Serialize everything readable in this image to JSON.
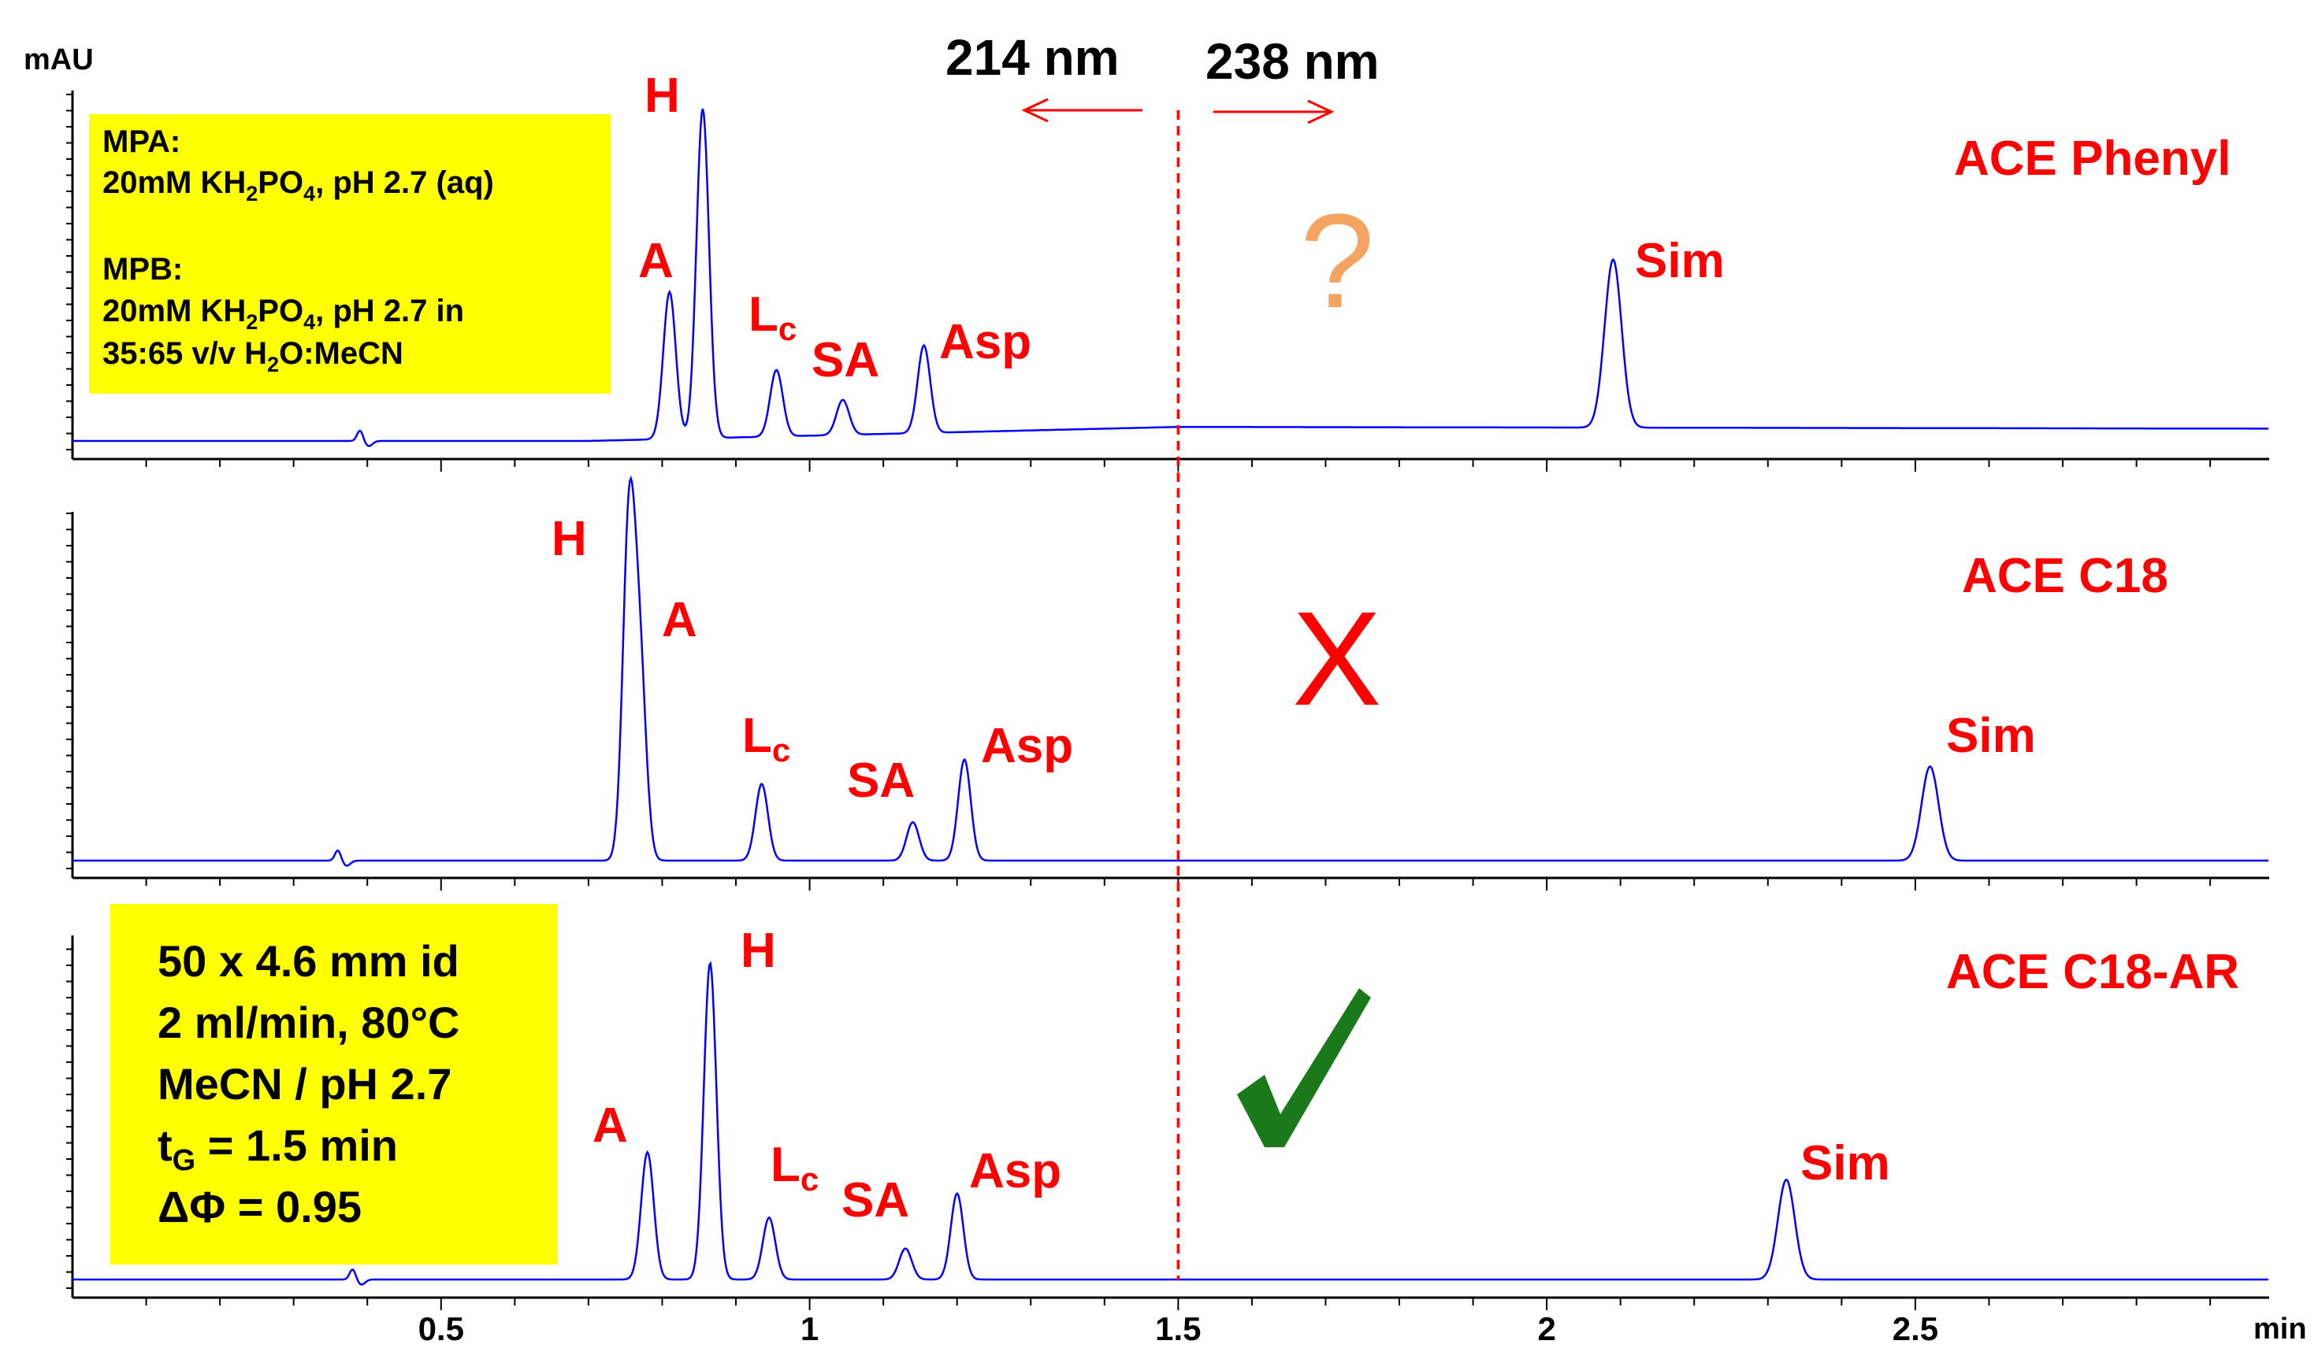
{
  "chart_data": {
    "type": "line",
    "y_unit": "mAU",
    "x_unit": "min",
    "x_range": [
      0.0,
      2.98
    ],
    "x_ticks": [
      "0.5",
      "1",
      "1.5",
      "2",
      "2.5"
    ],
    "x_tick_values": [
      0.5,
      1.0,
      1.5,
      2.0,
      2.5
    ],
    "wavelength_split": {
      "x": 1.5,
      "left_label": "214 nm",
      "right_label": "238 nm",
      "color": "#ff0000"
    },
    "trace_color": "#0000ff",
    "label_color": "#ff0000",
    "panels": [
      {
        "column": "ACE Phenyl",
        "verdict": "?",
        "verdict_color": "#f4a460",
        "baseline_drift": true,
        "peaks": [
          {
            "name": "A",
            "sub": "",
            "rt": 0.81,
            "height": 0.42
          },
          {
            "name": "H",
            "sub": "",
            "rt": 0.855,
            "height": 0.94
          },
          {
            "name": "L",
            "sub": "c",
            "rt": 0.955,
            "height": 0.19
          },
          {
            "name": "SA",
            "sub": "",
            "rt": 1.045,
            "height": 0.1
          },
          {
            "name": "Asp",
            "sub": "",
            "rt": 1.155,
            "height": 0.25
          },
          {
            "name": "Sim",
            "sub": "",
            "rt": 2.09,
            "height": 0.48
          }
        ],
        "system_peak": {
          "rt": 0.39,
          "height": 0.03
        }
      },
      {
        "column": "ACE C18",
        "verdict": "X",
        "verdict_color": "#ff0000",
        "baseline_drift": false,
        "peaks": [
          {
            "name": "H",
            "sub": "",
            "rt": 0.755,
            "height": 0.96
          },
          {
            "name": "A",
            "sub": "",
            "rt": 0.77,
            "height": 0.52
          },
          {
            "name": "L",
            "sub": "c",
            "rt": 0.935,
            "height": 0.22
          },
          {
            "name": "SA",
            "sub": "",
            "rt": 1.14,
            "height": 0.11
          },
          {
            "name": "Asp",
            "sub": "",
            "rt": 1.21,
            "height": 0.29
          },
          {
            "name": "Sim",
            "sub": "",
            "rt": 2.52,
            "height": 0.27
          }
        ],
        "system_peak": {
          "rt": 0.36,
          "height": 0.03
        }
      },
      {
        "column": "ACE C18-AR",
        "verdict": "✓",
        "verdict_color": "#1a7a1a",
        "baseline_drift": false,
        "peaks": [
          {
            "name": "A",
            "sub": "",
            "rt": 0.78,
            "height": 0.37
          },
          {
            "name": "H",
            "sub": "",
            "rt": 0.865,
            "height": 0.92
          },
          {
            "name": "L",
            "sub": "c",
            "rt": 0.945,
            "height": 0.18
          },
          {
            "name": "SA",
            "sub": "",
            "rt": 1.13,
            "height": 0.09
          },
          {
            "name": "Asp",
            "sub": "",
            "rt": 1.2,
            "height": 0.25
          },
          {
            "name": "Sim",
            "sub": "",
            "rt": 2.325,
            "height": 0.29
          }
        ],
        "system_peak": {
          "rt": 0.38,
          "height": 0.03
        }
      }
    ]
  },
  "mobile_phase_box": {
    "bg": "#ffff00",
    "mpa_label": "MPA:",
    "mpa_line_pre": "20mM KH",
    "mpa_sub1": "2",
    "mpa_mid": "PO",
    "mpa_sub2": "4",
    "mpa_post": ", pH 2.7 (aq)",
    "mpb_label": "MPB:",
    "mpb_line_pre": "20mM KH",
    "mpb_sub1": "2",
    "mpb_mid": "PO",
    "mpb_sub2": "4",
    "mpb_post": ", pH 2.7 in",
    "mpb_line3_pre": "35:65 v/v H",
    "mpb_line3_sub": "2",
    "mpb_line3_post": "O:MeCN"
  },
  "conditions_box": {
    "bg": "#ffff00",
    "line1": "50 x 4.6 mm id",
    "line2": "2 ml/min, 80°C",
    "line3": "MeCN / pH 2.7",
    "line4_pre": "t",
    "line4_sub": "G",
    "line4_post": " = 1.5 min",
    "line5": "ΔΦ = 0.95"
  }
}
